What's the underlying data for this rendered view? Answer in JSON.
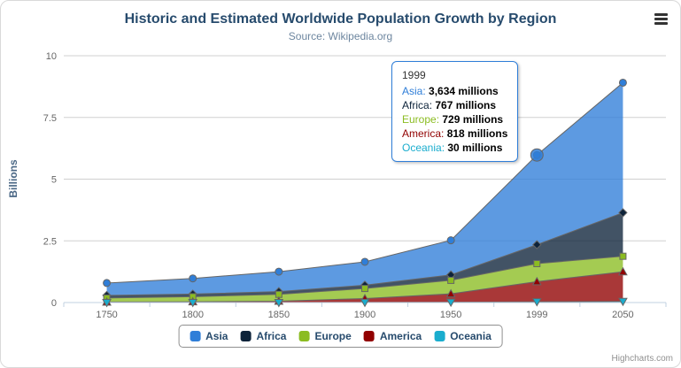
{
  "header": {
    "title": "Historic and Estimated Worldwide Population Growth by Region",
    "subtitle": "Source: Wikipedia.org"
  },
  "axes": {
    "y_title": "Billions",
    "y_labels": [
      "0",
      "2.5",
      "5",
      "7.5",
      "10"
    ],
    "x_labels": [
      "1750",
      "1800",
      "1850",
      "1900",
      "1950",
      "1999",
      "2050"
    ]
  },
  "chart_data": {
    "type": "area",
    "stacking": "normal",
    "title": "Historic and Estimated Worldwide Population Growth by Region",
    "subtitle": "Source: Wikipedia.org",
    "categories": [
      "1750",
      "1800",
      "1850",
      "1900",
      "1950",
      "1999",
      "2050"
    ],
    "unit": "millions",
    "series": [
      {
        "name": "Asia",
        "color": "#2f7ed8",
        "marker": "circle",
        "values_millions": [
          502,
          635,
          809,
          947,
          1402,
          3634,
          5268
        ]
      },
      {
        "name": "Africa",
        "color": "#0d233a",
        "marker": "diamond",
        "values_millions": [
          106,
          107,
          111,
          133,
          221,
          767,
          1766
        ]
      },
      {
        "name": "Europe",
        "color": "#8bbc21",
        "marker": "square",
        "values_millions": [
          163,
          203,
          276,
          408,
          547,
          729,
          628
        ]
      },
      {
        "name": "America",
        "color": "#910000",
        "marker": "triangle",
        "values_millions": [
          18,
          31,
          54,
          156,
          339,
          818,
          1201
        ]
      },
      {
        "name": "Oceania",
        "color": "#1aadce",
        "marker": "triangle-down",
        "values_millions": [
          2,
          2,
          2,
          6,
          13,
          30,
          46
        ]
      }
    ],
    "ylabel": "Billions",
    "ylim": [
      0,
      10
    ],
    "yticks": [
      0,
      2.5,
      5,
      7.5,
      10
    ],
    "grid": true,
    "legend_position": "bottom",
    "hover": {
      "category": "1999",
      "series": "Asia"
    }
  },
  "tooltip": {
    "header": "1999",
    "rows": [
      {
        "label": "Asia",
        "value": "3,634 millions",
        "color": "#2f7ed8"
      },
      {
        "label": "Africa",
        "value": "767 millions",
        "color": "#0d233a"
      },
      {
        "label": "Europe",
        "value": "729 millions",
        "color": "#8bbc21"
      },
      {
        "label": "America",
        "value": "818 millions",
        "color": "#910000"
      },
      {
        "label": "Oceania",
        "value": "30 millions",
        "color": "#1aadce"
      }
    ]
  },
  "legend": {
    "items": [
      {
        "label": "Asia",
        "color": "#2f7ed8"
      },
      {
        "label": "Africa",
        "color": "#0d233a"
      },
      {
        "label": "Europe",
        "color": "#8bbc21"
      },
      {
        "label": "America",
        "color": "#910000"
      },
      {
        "label": "Oceania",
        "color": "#1aadce"
      }
    ]
  },
  "credits": {
    "label": "Highcharts.com"
  }
}
